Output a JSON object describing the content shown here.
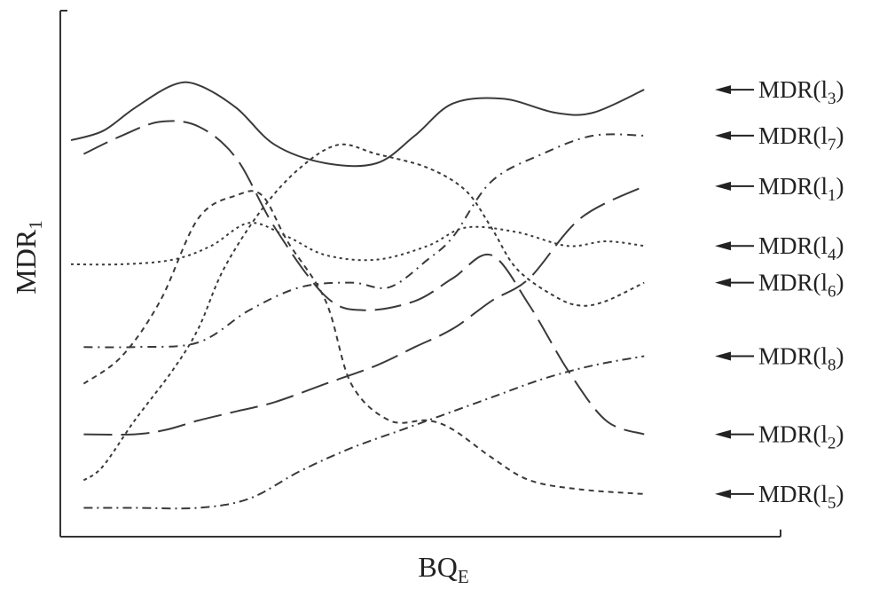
{
  "chart_data": {
    "type": "line",
    "xlabel": "BQ",
    "xlabel_sub": "E",
    "ylabel": "MDR",
    "ylabel_sub": "1",
    "xlim": [
      0,
      100
    ],
    "ylim": [
      0,
      100
    ],
    "x_ticks_shown": false,
    "y_ticks_shown": false,
    "grid": false,
    "legend_position": "right",
    "series": [
      {
        "name": "MDR(l3)",
        "label_prefix": "MDR(l",
        "label_sub": "3",
        "label_suffix": ")",
        "style": "solid",
        "dash": "",
        "x": [
          0,
          5,
          10,
          16,
          20,
          26,
          32,
          40,
          48,
          54,
          60,
          68,
          76,
          82,
          90
        ],
        "y": [
          83,
          85,
          90,
          95,
          95,
          90,
          82,
          78,
          78,
          84,
          91,
          92,
          89,
          89,
          94
        ]
      },
      {
        "name": "MDR(l7)",
        "label_prefix": "MDR(l",
        "label_sub": "7",
        "label_suffix": ")",
        "style": "dash-dot",
        "dash": "10 6 2 6",
        "x": [
          2,
          10,
          20,
          28,
          36,
          44,
          50,
          56,
          60,
          66,
          74,
          82,
          90
        ],
        "y": [
          38,
          38,
          39,
          46,
          51,
          52,
          51,
          57,
          62,
          74,
          80,
          84,
          84
        ]
      },
      {
        "name": "MDR(l1)",
        "label_prefix": "MDR(l",
        "label_sub": "1",
        "label_suffix": ")",
        "style": "long-dash",
        "dash": "32 10",
        "x": [
          2,
          10,
          15,
          20,
          26,
          32,
          40,
          48,
          54,
          60,
          66,
          72,
          80,
          90
        ],
        "y": [
          19,
          19,
          20,
          22,
          24,
          26,
          30,
          34,
          38,
          42,
          48,
          53,
          66,
          73
        ]
      },
      {
        "name": "MDR(l4)",
        "label_prefix": "MDR(l",
        "label_sub": "4",
        "label_suffix": ")",
        "style": "dotted",
        "dash": "3 4",
        "x": [
          0,
          8,
          16,
          22,
          28,
          34,
          40,
          48,
          56,
          62,
          70,
          78,
          84,
          90
        ],
        "y": [
          56,
          56,
          57,
          60,
          65,
          62,
          58,
          57,
          60,
          64,
          63,
          60,
          61,
          60
        ]
      },
      {
        "name": "MDR(l6)",
        "label_prefix": "MDR(l",
        "label_sub": "6",
        "label_suffix": ")",
        "style": "dotted",
        "dash": "4 4",
        "x": [
          2,
          5,
          10,
          16,
          20,
          24,
          30,
          36,
          42,
          48,
          56,
          62,
          66,
          70,
          76,
          80,
          84,
          90
        ],
        "y": [
          9,
          12,
          22,
          33,
          42,
          55,
          68,
          77,
          82,
          80,
          77,
          72,
          64,
          55,
          49,
          47,
          48,
          52
        ]
      },
      {
        "name": "MDR(l8)",
        "label_prefix": "MDR(l",
        "label_sub": "8",
        "label_suffix": ")",
        "style": "dash-dot",
        "dash": "10 5 2 5",
        "x": [
          2,
          10,
          20,
          28,
          36,
          44,
          52,
          58,
          66,
          74,
          82,
          90
        ],
        "y": [
          3,
          3,
          3,
          5,
          11,
          16,
          20,
          23,
          27,
          31,
          34,
          36
        ]
      },
      {
        "name": "MDR(l2)",
        "label_prefix": "MDR(l",
        "label_sub": "2",
        "label_suffix": ")",
        "style": "long-dash",
        "dash": "30 10",
        "x": [
          2,
          8,
          14,
          20,
          26,
          32,
          40,
          46,
          54,
          60,
          66,
          72,
          78,
          84,
          90
        ],
        "y": [
          80,
          84,
          87,
          86,
          79,
          64,
          49,
          46,
          48,
          53,
          58,
          47,
          33,
          22,
          19
        ]
      },
      {
        "name": "MDR(l5)",
        "label_prefix": "MDR(l",
        "label_sub": "5",
        "label_suffix": ")",
        "style": "dotted",
        "dash": "6 5",
        "x": [
          2,
          8,
          14,
          20,
          26,
          30,
          34,
          40,
          44,
          50,
          56,
          60,
          66,
          72,
          80,
          90
        ],
        "y": [
          30,
          36,
          48,
          66,
          71,
          71,
          61,
          48,
          30,
          22,
          22,
          20,
          14,
          9,
          7,
          6
        ]
      }
    ]
  }
}
